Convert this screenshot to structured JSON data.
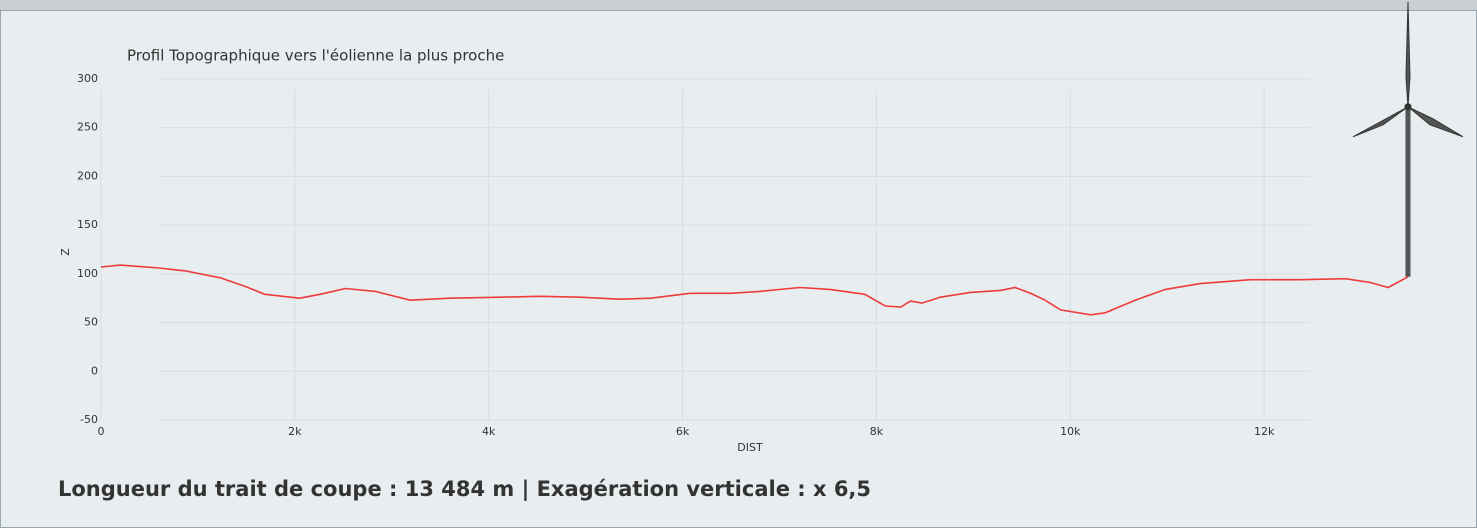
{
  "chart_data": {
    "type": "line",
    "title": "Profil Topographique vers l'éolienne la plus proche",
    "x_label": "DIST",
    "y_label": "Z",
    "footer": "Longueur du trait de coupe : 13 484 m  |  Exagération verticale : x 6,5",
    "color": "#ee3b3b",
    "x": [
      0,
      200,
      600,
      870,
      1230,
      1490,
      1690,
      2050,
      2260,
      2520,
      2830,
      3190,
      3600,
      4120,
      4530,
      4940,
      5360,
      5670,
      6080,
      6490,
      6800,
      7210,
      7520,
      7880,
      8090,
      8250,
      8350,
      8470,
      8660,
      8970,
      9280,
      9430,
      9590,
      9740,
      9900,
      10210,
      10360,
      10670,
      10980,
      11340,
      11860,
      12370,
      12840,
      13100,
      13280,
      13484
    ],
    "values": [
      107,
      109,
      106,
      103,
      96,
      87,
      79,
      75,
      79,
      85,
      82,
      73,
      75,
      76,
      77,
      76,
      74,
      75,
      80,
      80,
      82,
      86,
      84,
      79,
      67,
      66,
      72,
      70,
      76,
      81,
      83,
      86,
      80,
      73,
      63,
      58,
      60,
      73,
      84,
      90,
      94,
      94,
      95,
      91,
      86,
      97
    ],
    "xlim": [
      0,
      14000
    ],
    "ylim": [
      -50,
      300
    ],
    "xticks": [
      0,
      {
        "value": 2000,
        "label": "2k"
      },
      {
        "value": 4000,
        "label": "4k"
      },
      {
        "value": 6000,
        "label": "6k"
      },
      {
        "value": 8000,
        "label": "8k"
      },
      {
        "value": 10000,
        "label": "10k"
      },
      {
        "value": 12000,
        "label": "12k"
      }
    ],
    "yticks": [
      -50,
      0,
      50,
      100,
      150,
      200,
      250,
      300
    ],
    "grid": true
  }
}
